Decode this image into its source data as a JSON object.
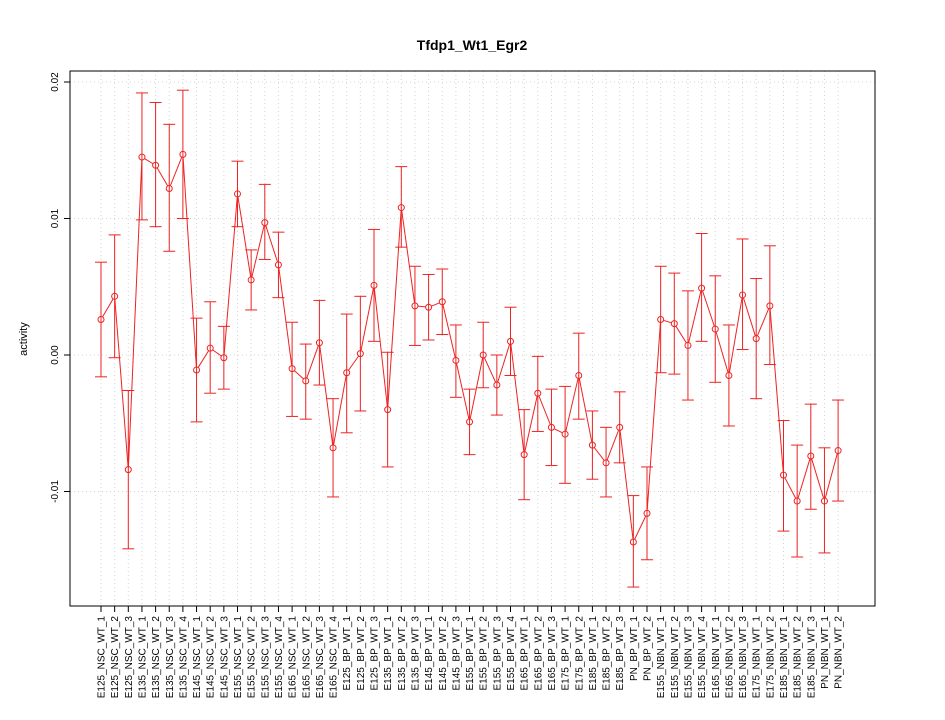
{
  "chart_data": {
    "type": "line",
    "title": "Tfdp1_Wt1_Egr2",
    "xlabel": "",
    "ylabel": "activity",
    "ylim": [
      -0.0185,
      0.0205
    ],
    "yticks": [
      -0.01,
      0.0,
      0.01,
      0.02
    ],
    "ytick_labels": [
      "-0.01",
      "0.00",
      "0.01",
      "0.02"
    ],
    "grid": true,
    "color": "#ee2222",
    "categories": [
      "E125_NSC_WT_1",
      "E125_NSC_WT_2",
      "E125_NSC_WT_3",
      "E135_NSC_WT_1",
      "E135_NSC_WT_2",
      "E135_NSC_WT_3",
      "E135_NSC_WT_4",
      "E145_NSC_WT_1",
      "E145_NSC_WT_2",
      "E145_NSC_WT_3",
      "E155_NSC_WT_1",
      "E155_NSC_WT_2",
      "E155_NSC_WT_3",
      "E155_NSC_WT_4",
      "E165_NSC_WT_1",
      "E165_NSC_WT_2",
      "E165_NSC_WT_3",
      "E165_NSC_WT_4",
      "E125_BP_WT_1",
      "E125_BP_WT_2",
      "E125_BP_WT_3",
      "E135_BP_WT_1",
      "E135_BP_WT_2",
      "E135_BP_WT_3",
      "E145_BP_WT_1",
      "E145_BP_WT_2",
      "E145_BP_WT_3",
      "E155_BP_WT_1",
      "E155_BP_WT_2",
      "E155_BP_WT_3",
      "E155_BP_WT_4",
      "E165_BP_WT_1",
      "E165_BP_WT_2",
      "E165_BP_WT_3",
      "E175_BP_WT_1",
      "E175_BP_WT_2",
      "E185_BP_WT_1",
      "E185_BP_WT_2",
      "E185_BP_WT_3",
      "PN_BP_WT_1",
      "PN_BP_WT_2",
      "E155_NBN_WT_1",
      "E155_NBN_WT_2",
      "E155_NBN_WT_3",
      "E155_NBN_WT_4",
      "E165_NBN_WT_1",
      "E165_NBN_WT_2",
      "E165_NBN_WT_3",
      "E175_NBN_WT_1",
      "E175_NBN_WT_2",
      "E185_NBN_WT_1",
      "E185_NBN_WT_2",
      "E185_NBN_WT_3",
      "PN_NBN_WT_1",
      "PN_NBN_WT_2"
    ],
    "values": [
      0.0026,
      0.0043,
      -0.0084,
      0.0145,
      0.0139,
      0.0122,
      0.0147,
      -0.0011,
      0.0005,
      -0.0002,
      0.0118,
      0.0055,
      0.0097,
      0.0066,
      -0.001,
      -0.0019,
      0.0009,
      -0.0068,
      -0.0013,
      0.0001,
      0.0051,
      -0.004,
      0.0108,
      0.0036,
      0.0035,
      0.0039,
      -0.0004,
      -0.0049,
      0.0,
      -0.0022,
      0.001,
      -0.0073,
      -0.0028,
      -0.0053,
      -0.0058,
      -0.0015,
      -0.0066,
      -0.0079,
      -0.0053,
      -0.0137,
      -0.0116,
      0.0026,
      0.0023,
      0.0007,
      0.0049,
      0.0019,
      -0.0015,
      0.0044,
      0.0012,
      0.0036,
      -0.0088,
      -0.0107,
      -0.0074,
      -0.0107,
      -0.007
    ],
    "error_lower": [
      -0.0016,
      -0.0002,
      -0.0142,
      0.0099,
      0.0094,
      0.0076,
      0.01,
      -0.0049,
      -0.0028,
      -0.0025,
      0.0094,
      0.0033,
      0.007,
      0.0042,
      -0.0045,
      -0.0047,
      -0.0022,
      -0.0104,
      -0.0057,
      -0.0041,
      0.001,
      -0.0082,
      0.0079,
      0.0007,
      0.0011,
      0.0015,
      -0.0031,
      -0.0073,
      -0.0024,
      -0.0044,
      -0.0015,
      -0.0106,
      -0.0056,
      -0.0081,
      -0.0094,
      -0.0047,
      -0.0091,
      -0.0104,
      -0.0079,
      -0.017,
      -0.015,
      -0.0013,
      -0.0014,
      -0.0033,
      0.001,
      -0.002,
      -0.0052,
      0.0004,
      -0.0032,
      -0.0007,
      -0.0129,
      -0.0148,
      -0.0113,
      -0.0145,
      -0.0107
    ],
    "error_upper": [
      0.0068,
      0.0088,
      -0.0026,
      0.0192,
      0.0185,
      0.0169,
      0.0194,
      0.0027,
      0.0039,
      0.0021,
      0.0142,
      0.0077,
      0.0125,
      0.009,
      0.0024,
      0.0008,
      0.004,
      -0.0032,
      0.003,
      0.0043,
      0.0092,
      0.0002,
      0.0138,
      0.0065,
      0.0059,
      0.0063,
      0.0022,
      -0.0025,
      0.0024,
      0.0,
      0.0035,
      -0.004,
      -0.0001,
      -0.0025,
      -0.0023,
      0.0016,
      -0.0041,
      -0.0053,
      -0.0027,
      -0.0103,
      -0.0082,
      0.0065,
      0.006,
      0.0047,
      0.0089,
      0.0058,
      0.0022,
      0.0085,
      0.0056,
      0.008,
      -0.0048,
      -0.0066,
      -0.0036,
      -0.0068,
      -0.0033
    ]
  }
}
